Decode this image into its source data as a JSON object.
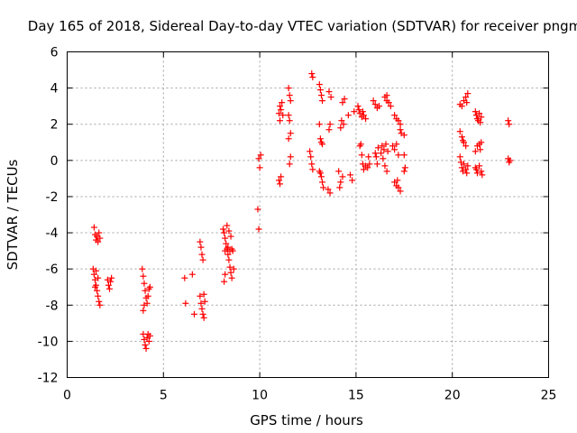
{
  "colors": {
    "marker": "#ff0000",
    "grid": "#a0a0a0",
    "axis": "#000000"
  },
  "chart_data": {
    "type": "scatter",
    "title": "Day 165 of 2018, Sidereal Day-to-day VTEC variation (SDTVAR) for receiver pngm",
    "xlabel": "GPS time / hours",
    "ylabel": "SDTVAR / TECUs",
    "xlim": [
      0,
      25
    ],
    "ylim": [
      -12,
      6
    ],
    "xticks": [
      "0",
      "5",
      "10",
      "15",
      "20",
      "25"
    ],
    "yticks": [
      "6",
      "4",
      "2",
      "0",
      "-2",
      "-4",
      "-6",
      "-8",
      "-10",
      "-12"
    ],
    "grid": true,
    "marker": "+",
    "series": [
      {
        "name": "SDTVAR",
        "points": [
          [
            1.4,
            -3.7
          ],
          [
            1.45,
            -4.1
          ],
          [
            1.5,
            -4.4
          ],
          [
            1.55,
            -4.2
          ],
          [
            1.6,
            -4.5
          ],
          [
            1.65,
            -4.0
          ],
          [
            1.7,
            -4.3
          ],
          [
            1.35,
            -6.0
          ],
          [
            1.4,
            -6.3
          ],
          [
            1.45,
            -6.6
          ],
          [
            1.5,
            -6.9
          ],
          [
            1.55,
            -7.2
          ],
          [
            1.6,
            -7.5
          ],
          [
            1.65,
            -7.8
          ],
          [
            1.7,
            -8.0
          ],
          [
            1.5,
            -6.1
          ],
          [
            1.6,
            -6.5
          ],
          [
            1.45,
            -7.0
          ],
          [
            2.1,
            -6.6
          ],
          [
            2.15,
            -6.9
          ],
          [
            2.2,
            -7.1
          ],
          [
            2.25,
            -6.7
          ],
          [
            2.3,
            -6.5
          ],
          [
            3.9,
            -6.0
          ],
          [
            3.95,
            -6.4
          ],
          [
            4.0,
            -6.8
          ],
          [
            4.05,
            -7.2
          ],
          [
            4.1,
            -7.6
          ],
          [
            4.0,
            -8.0
          ],
          [
            3.95,
            -8.3
          ],
          [
            4.15,
            -7.9
          ],
          [
            4.2,
            -7.5
          ],
          [
            4.25,
            -7.1
          ],
          [
            4.3,
            -7.0
          ],
          [
            3.95,
            -9.6
          ],
          [
            4.0,
            -9.9
          ],
          [
            4.05,
            -10.2
          ],
          [
            4.1,
            -10.4
          ],
          [
            4.15,
            -9.8
          ],
          [
            4.2,
            -9.6
          ],
          [
            4.25,
            -10.0
          ],
          [
            4.3,
            -9.7
          ],
          [
            6.1,
            -6.5
          ],
          [
            6.15,
            -7.9
          ],
          [
            6.5,
            -6.3
          ],
          [
            6.6,
            -8.5
          ],
          [
            6.9,
            -4.5
          ],
          [
            6.95,
            -4.8
          ],
          [
            7.0,
            -5.2
          ],
          [
            7.05,
            -5.5
          ],
          [
            6.9,
            -7.5
          ],
          [
            6.95,
            -7.9
          ],
          [
            7.0,
            -8.2
          ],
          [
            7.05,
            -8.5
          ],
          [
            7.1,
            -8.7
          ],
          [
            7.15,
            -7.8
          ],
          [
            7.1,
            -7.4
          ],
          [
            8.1,
            -3.8
          ],
          [
            8.15,
            -4.0
          ],
          [
            8.2,
            -4.3
          ],
          [
            8.25,
            -4.6
          ],
          [
            8.3,
            -4.9
          ],
          [
            8.35,
            -5.2
          ],
          [
            8.4,
            -5.5
          ],
          [
            8.45,
            -5.9
          ],
          [
            8.5,
            -6.2
          ],
          [
            8.55,
            -6.5
          ],
          [
            8.15,
            -6.7
          ],
          [
            8.2,
            -6.3
          ],
          [
            8.3,
            -3.6
          ],
          [
            8.4,
            -3.9
          ],
          [
            8.5,
            -4.2
          ],
          [
            8.55,
            -4.9
          ],
          [
            8.6,
            -5.0
          ],
          [
            8.65,
            -6.0
          ],
          [
            8.2,
            -5.0
          ],
          [
            8.35,
            -4.8
          ],
          [
            8.45,
            -5.0
          ],
          [
            9.9,
            -2.7
          ],
          [
            9.95,
            -3.8
          ],
          [
            10.0,
            -0.4
          ],
          [
            9.95,
            0.1
          ],
          [
            10.05,
            0.3
          ],
          [
            11.0,
            -1.1
          ],
          [
            11.1,
            -0.9
          ],
          [
            11.05,
            -1.3
          ],
          [
            11.0,
            2.6
          ],
          [
            11.05,
            3.0
          ],
          [
            11.1,
            2.8
          ],
          [
            11.15,
            3.2
          ],
          [
            11.2,
            2.5
          ],
          [
            11.05,
            2.2
          ],
          [
            11.5,
            4.0
          ],
          [
            11.55,
            3.6
          ],
          [
            11.6,
            3.3
          ],
          [
            11.5,
            2.5
          ],
          [
            11.55,
            2.2
          ],
          [
            11.6,
            1.5
          ],
          [
            11.5,
            1.2
          ],
          [
            11.6,
            0.2
          ],
          [
            11.55,
            -0.2
          ],
          [
            12.7,
            4.8
          ],
          [
            12.75,
            4.6
          ],
          [
            12.6,
            0.5
          ],
          [
            12.65,
            0.2
          ],
          [
            12.7,
            -0.2
          ],
          [
            12.75,
            -0.5
          ],
          [
            13.1,
            4.2
          ],
          [
            13.15,
            3.9
          ],
          [
            13.2,
            3.6
          ],
          [
            13.25,
            3.3
          ],
          [
            13.1,
            2.0
          ],
          [
            13.2,
            1.0
          ],
          [
            13.25,
            0.9
          ],
          [
            13.15,
            1.2
          ],
          [
            13.1,
            -0.6
          ],
          [
            13.2,
            -0.9
          ],
          [
            13.25,
            -1.2
          ],
          [
            13.3,
            -1.5
          ],
          [
            13.15,
            -0.7
          ],
          [
            13.6,
            3.8
          ],
          [
            13.7,
            3.5
          ],
          [
            13.65,
            2.0
          ],
          [
            13.6,
            1.7
          ],
          [
            13.55,
            -1.6
          ],
          [
            13.65,
            -1.8
          ],
          [
            14.1,
            -0.6
          ],
          [
            14.2,
            -1.2
          ],
          [
            14.15,
            -1.5
          ],
          [
            14.3,
            -0.9
          ],
          [
            14.2,
            1.8
          ],
          [
            14.25,
            2.2
          ],
          [
            14.35,
            2.0
          ],
          [
            14.3,
            3.2
          ],
          [
            14.4,
            3.4
          ],
          [
            14.6,
            2.5
          ],
          [
            14.7,
            -0.8
          ],
          [
            14.8,
            -1.1
          ],
          [
            14.9,
            2.7
          ],
          [
            15.1,
            3.0
          ],
          [
            15.15,
            2.8
          ],
          [
            15.2,
            2.6
          ],
          [
            15.3,
            2.4
          ],
          [
            15.4,
            2.5
          ],
          [
            15.5,
            2.3
          ],
          [
            15.35,
            2.7
          ],
          [
            15.2,
            0.8
          ],
          [
            15.25,
            0.9
          ],
          [
            15.3,
            0.3
          ],
          [
            15.35,
            -0.2
          ],
          [
            15.4,
            -0.5
          ],
          [
            15.5,
            -0.3
          ],
          [
            15.6,
            -0.4
          ],
          [
            15.7,
            -0.2
          ],
          [
            15.65,
            0.2
          ],
          [
            15.9,
            3.3
          ],
          [
            16.0,
            3.1
          ],
          [
            16.1,
            2.9
          ],
          [
            16.2,
            3.0
          ],
          [
            16.0,
            0.4
          ],
          [
            16.05,
            0.2
          ],
          [
            16.1,
            -0.2
          ],
          [
            16.15,
            0.7
          ],
          [
            16.3,
            0.4
          ],
          [
            16.4,
            0.1
          ],
          [
            16.5,
            -0.3
          ],
          [
            16.6,
            -0.6
          ],
          [
            16.35,
            0.8
          ],
          [
            16.45,
            0.6
          ],
          [
            16.55,
            0.9
          ],
          [
            16.65,
            0.5
          ],
          [
            16.5,
            3.5
          ],
          [
            16.6,
            3.3
          ],
          [
            16.7,
            3.2
          ],
          [
            16.8,
            3.0
          ],
          [
            16.6,
            3.6
          ],
          [
            16.9,
            0.8
          ],
          [
            17.0,
            0.6
          ],
          [
            17.1,
            0.9
          ],
          [
            17.2,
            0.3
          ],
          [
            17.0,
            2.5
          ],
          [
            17.1,
            2.3
          ],
          [
            17.2,
            2.2
          ],
          [
            17.3,
            2.0
          ],
          [
            17.0,
            -1.2
          ],
          [
            17.1,
            -1.4
          ],
          [
            17.2,
            -1.5
          ],
          [
            17.3,
            -1.7
          ],
          [
            17.15,
            -1.1
          ],
          [
            17.3,
            1.7
          ],
          [
            17.35,
            1.5
          ],
          [
            17.5,
            1.4
          ],
          [
            17.5,
            0.3
          ],
          [
            17.55,
            -0.4
          ],
          [
            17.5,
            -0.6
          ],
          [
            20.4,
            3.1
          ],
          [
            20.5,
            3.0
          ],
          [
            20.6,
            3.3
          ],
          [
            20.7,
            3.5
          ],
          [
            20.8,
            3.7
          ],
          [
            20.75,
            3.2
          ],
          [
            20.4,
            1.6
          ],
          [
            20.5,
            1.3
          ],
          [
            20.6,
            1.0
          ],
          [
            20.7,
            0.8
          ],
          [
            20.55,
            1.1
          ],
          [
            20.4,
            0.2
          ],
          [
            20.45,
            -0.1
          ],
          [
            20.5,
            -0.4
          ],
          [
            20.55,
            -0.6
          ],
          [
            20.6,
            -0.2
          ],
          [
            20.7,
            -0.5
          ],
          [
            20.8,
            -0.3
          ],
          [
            20.75,
            -0.7
          ],
          [
            21.2,
            2.7
          ],
          [
            21.25,
            2.5
          ],
          [
            21.3,
            2.3
          ],
          [
            21.35,
            2.2
          ],
          [
            21.4,
            2.6
          ],
          [
            21.45,
            2.1
          ],
          [
            21.5,
            2.4
          ],
          [
            21.2,
            0.5
          ],
          [
            21.3,
            0.8
          ],
          [
            21.4,
            0.9
          ],
          [
            21.45,
            0.6
          ],
          [
            21.5,
            1.0
          ],
          [
            21.2,
            -0.4
          ],
          [
            21.25,
            -0.5
          ],
          [
            21.3,
            -0.7
          ],
          [
            21.4,
            -0.3
          ],
          [
            21.5,
            -0.6
          ],
          [
            21.55,
            -0.8
          ],
          [
            22.9,
            2.2
          ],
          [
            22.95,
            2.0
          ],
          [
            22.9,
            0.1
          ],
          [
            22.95,
            -0.1
          ],
          [
            23.0,
            0.0
          ]
        ]
      }
    ]
  }
}
